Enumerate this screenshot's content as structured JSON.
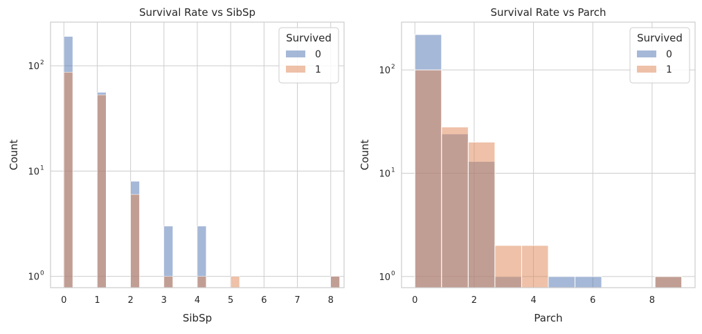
{
  "chart_data": [
    {
      "type": "bar",
      "title": "Survival Rate vs SibSp",
      "xlabel": "SibSp",
      "ylabel": "Count",
      "yscale": "log",
      "ylim": [
        0.78,
        260
      ],
      "xlim": [
        -0.4,
        8.4
      ],
      "xticks": [
        "0",
        "1",
        "2",
        "3",
        "4",
        "5",
        "6",
        "7",
        "8"
      ],
      "yticks": [
        {
          "base": "10",
          "exp": "0"
        },
        {
          "base": "10",
          "exp": "1"
        },
        {
          "base": "10",
          "exp": "2"
        }
      ],
      "grid": true,
      "legend": {
        "title": "Survived",
        "entries": [
          "0",
          "1"
        ],
        "position": "top-right"
      },
      "bin_width": 0.2667,
      "series": [
        {
          "name": "0",
          "color": "#4c72b0",
          "points": [
            {
              "x": 0,
              "y": 190
            },
            {
              "x": 1,
              "y": 56
            },
            {
              "x": 2,
              "y": 8
            },
            {
              "x": 3,
              "y": 3
            },
            {
              "x": 4,
              "y": 3
            },
            {
              "x": 8,
              "y": 1
            }
          ]
        },
        {
          "name": "1",
          "color": "#dd8452",
          "points": [
            {
              "x": 0,
              "y": 87
            },
            {
              "x": 1,
              "y": 53
            },
            {
              "x": 2,
              "y": 6
            },
            {
              "x": 3,
              "y": 1
            },
            {
              "x": 4,
              "y": 1
            },
            {
              "x": 5,
              "y": 1
            },
            {
              "x": 8,
              "y": 1
            }
          ]
        }
      ]
    },
    {
      "type": "bar",
      "title": "Survival Rate vs Parch",
      "xlabel": "Parch",
      "ylabel": "Count",
      "yscale": "log",
      "ylim": [
        0.78,
        290
      ],
      "xlim": [
        -0.45,
        9.45
      ],
      "xticks": [
        "0",
        "2",
        "4",
        "6",
        "8"
      ],
      "yticks": [
        {
          "base": "10",
          "exp": "0"
        },
        {
          "base": "10",
          "exp": "1"
        },
        {
          "base": "10",
          "exp": "2"
        }
      ],
      "grid": true,
      "legend": {
        "title": "Survived",
        "entries": [
          "0",
          "1"
        ],
        "position": "top-right"
      },
      "bin_width": 0.9,
      "series": [
        {
          "name": "0",
          "color": "#4c72b0",
          "points": [
            {
              "x": 0,
              "y": 220
            },
            {
              "x": 0.9,
              "y": 24
            },
            {
              "x": 1.8,
              "y": 13
            },
            {
              "x": 2.7,
              "y": 1
            },
            {
              "x": 4.5,
              "y": 1
            },
            {
              "x": 5.4,
              "y": 1
            },
            {
              "x": 8.1,
              "y": 1
            }
          ]
        },
        {
          "name": "1",
          "color": "#dd8452",
          "points": [
            {
              "x": 0,
              "y": 100
            },
            {
              "x": 0.9,
              "y": 28
            },
            {
              "x": 1.8,
              "y": 20
            },
            {
              "x": 2.7,
              "y": 2
            },
            {
              "x": 3.6,
              "y": 2
            },
            {
              "x": 8.1,
              "y": 1
            }
          ]
        }
      ]
    }
  ]
}
